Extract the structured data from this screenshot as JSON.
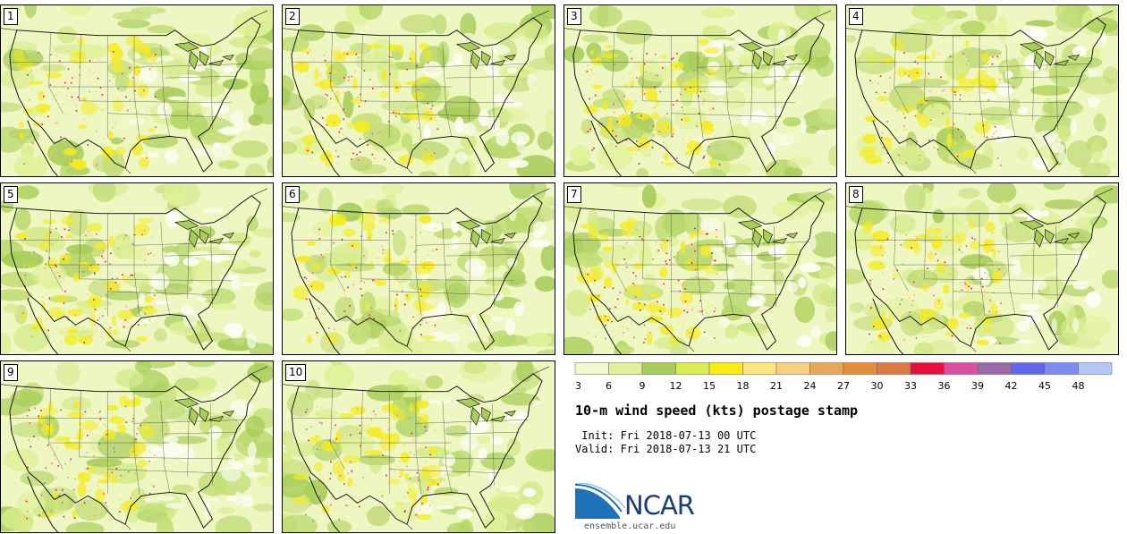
{
  "panels": [
    {
      "label": "1"
    },
    {
      "label": "2"
    },
    {
      "label": "3"
    },
    {
      "label": "4"
    },
    {
      "label": "5"
    },
    {
      "label": "6"
    },
    {
      "label": "7"
    },
    {
      "label": "8"
    },
    {
      "label": "9"
    },
    {
      "label": "10"
    }
  ],
  "colorbar": {
    "ticks": [
      "3",
      "6",
      "9",
      "12",
      "15",
      "18",
      "21",
      "24",
      "27",
      "30",
      "33",
      "36",
      "39",
      "42",
      "45",
      "48"
    ],
    "colors": [
      "#f1f8cc",
      "#e0f19a",
      "#a8cd5a",
      "#d8ee52",
      "#f8ec10",
      "#fbe77c",
      "#f6cf80",
      "#eaa654",
      "#e48c3c",
      "#dd7a42",
      "#e8103a",
      "#dc50a0",
      "#9a6aa8",
      "#6464f0",
      "#7c8cf4",
      "#b4c8f8"
    ]
  },
  "title": "10-m wind speed (kts) postage stamp",
  "init": " Init: Fri 2018-07-13 00 UTC",
  "valid": "Valid: Fri 2018-07-13 21 UTC",
  "logo": {
    "name": "NCAR",
    "url": "ensemble.ucar.edu"
  }
}
